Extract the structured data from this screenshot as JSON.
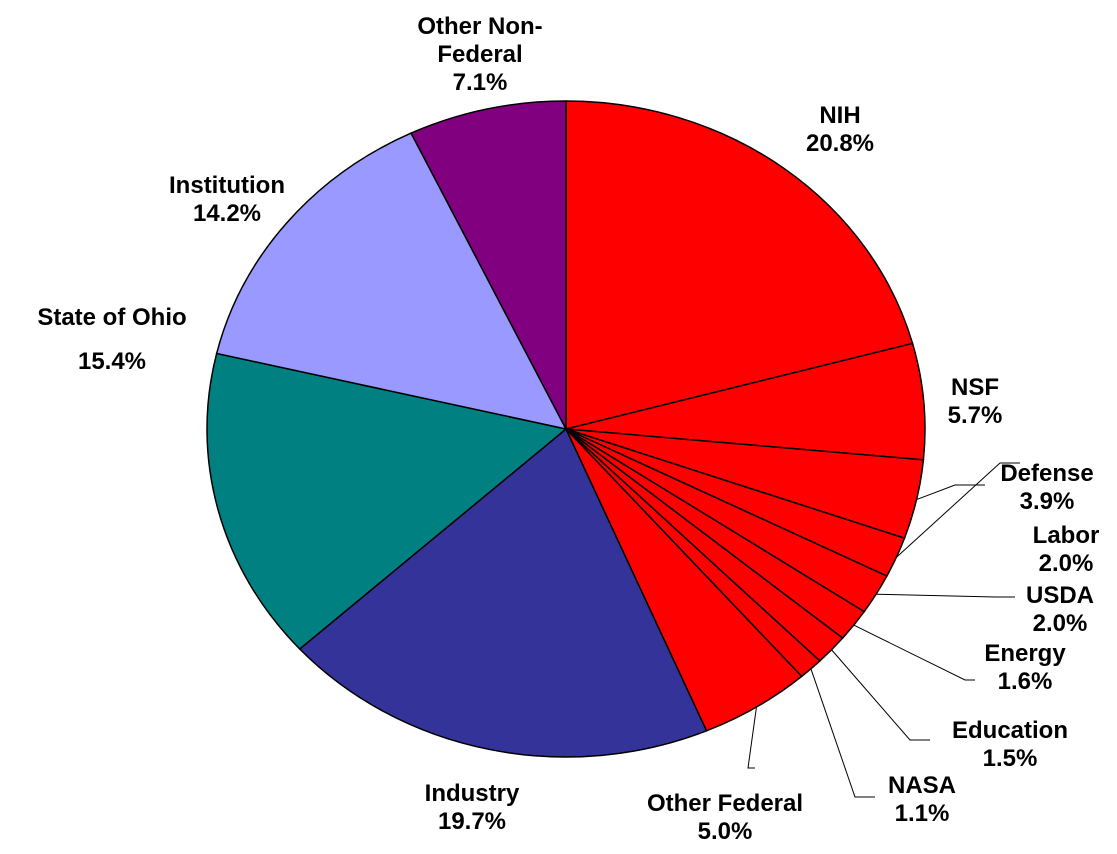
{
  "chart_data": {
    "type": "pie",
    "categories": [
      "NIH",
      "NSF",
      "Defense",
      "Labor",
      "USDA",
      "Energy",
      "Education",
      "NASA",
      "Other Federal",
      "Industry",
      "State of Ohio",
      "Institution",
      "Other Non-Federal"
    ],
    "values": [
      20.8,
      5.7,
      3.9,
      2.0,
      2.0,
      1.6,
      1.5,
      1.1,
      5.0,
      19.7,
      15.4,
      14.2,
      7.1
    ],
    "value_labels": [
      "20.8%",
      "5.7%",
      "3.9%",
      "2.0%",
      "2.0%",
      "1.6%",
      "1.5%",
      "1.1%",
      "5.0%",
      "19.7%",
      "15.4%",
      "14.2%",
      "7.1%"
    ],
    "colors": [
      "#ff0000",
      "#ff0000",
      "#ff0000",
      "#ff0000",
      "#ff0000",
      "#ff0000",
      "#ff0000",
      "#ff0000",
      "#ff0000",
      "#333399",
      "#008080",
      "#9999ff",
      "#800080"
    ]
  }
}
